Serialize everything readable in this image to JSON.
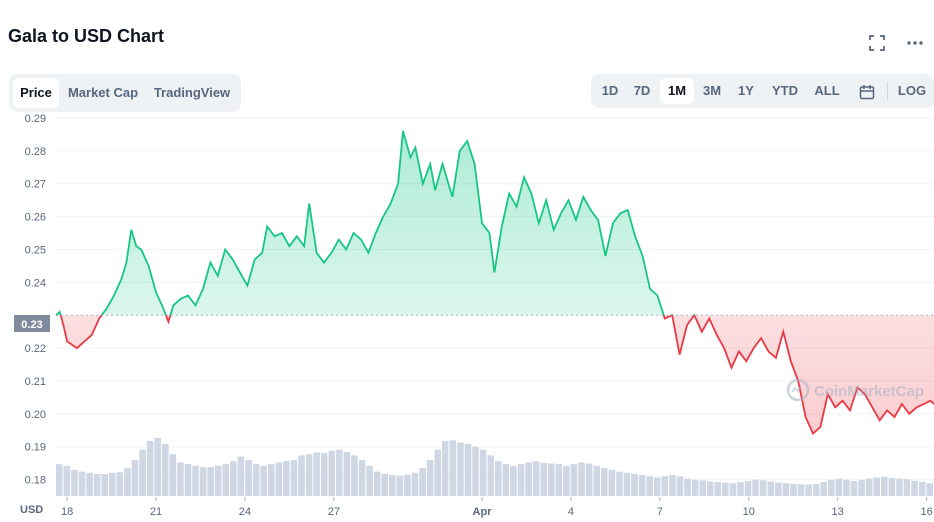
{
  "header": {
    "title": "Gala to USD Chart",
    "fullscreen_icon": "fullscreen-icon",
    "more_icon": "more-options-icon"
  },
  "left_tabs": [
    {
      "label": "Price",
      "active": true
    },
    {
      "label": "Market Cap",
      "active": false
    },
    {
      "label": "TradingView",
      "active": false
    }
  ],
  "range_tabs": [
    {
      "label": "1D",
      "active": false
    },
    {
      "label": "7D",
      "active": false
    },
    {
      "label": "1M",
      "active": true
    },
    {
      "label": "3M",
      "active": false
    },
    {
      "label": "1Y",
      "active": false
    },
    {
      "label": "YTD",
      "active": false
    },
    {
      "label": "ALL",
      "active": false
    }
  ],
  "calendar_icon": "calendar-icon",
  "log_label": "LOG",
  "watermark": "CoinMarketCap",
  "colors": {
    "up": "#16c784",
    "down": "#ea3943",
    "volume": "#cfd6e4",
    "grid": "#eff2f5",
    "axis_text": "#58667e"
  },
  "chart_data": {
    "type": "line",
    "currency_label": "USD",
    "baseline": 0.23,
    "baseline_label": "0.23",
    "ylim": [
      0.175,
      0.29
    ],
    "y_ticks": [
      "0.29",
      "0.28",
      "0.27",
      "0.26",
      "0.25",
      "0.24",
      "0.22",
      "0.21",
      "0.20",
      "0.19",
      "0.18"
    ],
    "x_range": [
      "2022-03-17T15:00",
      "2022-04-16T06:00"
    ],
    "x_ticks": [
      {
        "label": "18",
        "date": "2022-03-18"
      },
      {
        "label": "21",
        "date": "2022-03-21"
      },
      {
        "label": "24",
        "date": "2022-03-24"
      },
      {
        "label": "27",
        "date": "2022-03-27"
      },
      {
        "label": "Apr",
        "date": "2022-04-01",
        "bold": true
      },
      {
        "label": "4",
        "date": "2022-04-04"
      },
      {
        "label": "7",
        "date": "2022-04-07"
      },
      {
        "label": "10",
        "date": "2022-04-10"
      },
      {
        "label": "13",
        "date": "2022-04-13"
      },
      {
        "label": "16",
        "date": "2022-04-16"
      }
    ],
    "series": [
      {
        "price": [
          [
            "2022-03-17T15:00",
            0.23
          ],
          [
            "2022-03-17T18:00",
            0.231
          ],
          [
            "2022-03-17T21:00",
            0.227
          ],
          [
            "2022-03-18T00:00",
            0.222
          ],
          [
            "2022-03-18T04:00",
            0.221
          ],
          [
            "2022-03-18T08:00",
            0.22
          ],
          [
            "2022-03-18T14:00",
            0.222
          ],
          [
            "2022-03-18T20:00",
            0.224
          ],
          [
            "2022-03-19T02:00",
            0.229
          ],
          [
            "2022-03-19T08:00",
            0.232
          ],
          [
            "2022-03-19T14:00",
            0.236
          ],
          [
            "2022-03-19T20:00",
            0.241
          ],
          [
            "2022-03-20T00:00",
            0.246
          ],
          [
            "2022-03-20T04:00",
            0.256
          ],
          [
            "2022-03-20T08:00",
            0.251
          ],
          [
            "2022-03-20T12:00",
            0.25
          ],
          [
            "2022-03-20T18:00",
            0.245
          ],
          [
            "2022-03-21T00:00",
            0.237
          ],
          [
            "2022-03-21T06:00",
            0.232
          ],
          [
            "2022-03-21T10:00",
            0.228
          ],
          [
            "2022-03-21T14:00",
            0.233
          ],
          [
            "2022-03-21T20:00",
            0.235
          ],
          [
            "2022-03-22T02:00",
            0.236
          ],
          [
            "2022-03-22T08:00",
            0.233
          ],
          [
            "2022-03-22T14:00",
            0.238
          ],
          [
            "2022-03-22T20:00",
            0.246
          ],
          [
            "2022-03-23T02:00",
            0.242
          ],
          [
            "2022-03-23T08:00",
            0.25
          ],
          [
            "2022-03-23T14:00",
            0.247
          ],
          [
            "2022-03-23T20:00",
            0.243
          ],
          [
            "2022-03-24T02:00",
            0.239
          ],
          [
            "2022-03-24T08:00",
            0.247
          ],
          [
            "2022-03-24T14:00",
            0.249
          ],
          [
            "2022-03-24T18:00",
            0.257
          ],
          [
            "2022-03-25T00:00",
            0.254
          ],
          [
            "2022-03-25T06:00",
            0.255
          ],
          [
            "2022-03-25T12:00",
            0.251
          ],
          [
            "2022-03-25T18:00",
            0.254
          ],
          [
            "2022-03-26T00:00",
            0.251
          ],
          [
            "2022-03-26T04:00",
            0.264
          ],
          [
            "2022-03-26T10:00",
            0.249
          ],
          [
            "2022-03-26T16:00",
            0.246
          ],
          [
            "2022-03-26T22:00",
            0.249
          ],
          [
            "2022-03-27T04:00",
            0.253
          ],
          [
            "2022-03-27T10:00",
            0.25
          ],
          [
            "2022-03-27T16:00",
            0.255
          ],
          [
            "2022-03-27T22:00",
            0.253
          ],
          [
            "2022-03-28T04:00",
            0.249
          ],
          [
            "2022-03-28T10:00",
            0.255
          ],
          [
            "2022-03-28T16:00",
            0.26
          ],
          [
            "2022-03-28T22:00",
            0.264
          ],
          [
            "2022-03-29T04:00",
            0.27
          ],
          [
            "2022-03-29T08:00",
            0.286
          ],
          [
            "2022-03-29T14:00",
            0.278
          ],
          [
            "2022-03-29T18:00",
            0.281
          ],
          [
            "2022-03-30T00:00",
            0.27
          ],
          [
            "2022-03-30T06:00",
            0.276
          ],
          [
            "2022-03-30T10:00",
            0.268
          ],
          [
            "2022-03-30T16:00",
            0.276
          ],
          [
            "2022-03-31T00:00",
            0.266
          ],
          [
            "2022-03-31T06:00",
            0.28
          ],
          [
            "2022-03-31T12:00",
            0.283
          ],
          [
            "2022-03-31T18:00",
            0.276
          ],
          [
            "2022-04-01T00:00",
            0.258
          ],
          [
            "2022-04-01T06:00",
            0.255
          ],
          [
            "2022-04-01T10:00",
            0.243
          ],
          [
            "2022-04-01T16:00",
            0.257
          ],
          [
            "2022-04-01T22:00",
            0.267
          ],
          [
            "2022-04-02T04:00",
            0.263
          ],
          [
            "2022-04-02T10:00",
            0.272
          ],
          [
            "2022-04-02T16:00",
            0.267
          ],
          [
            "2022-04-02T22:00",
            0.258
          ],
          [
            "2022-04-03T04:00",
            0.265
          ],
          [
            "2022-04-03T10:00",
            0.256
          ],
          [
            "2022-04-03T16:00",
            0.261
          ],
          [
            "2022-04-03T22:00",
            0.265
          ],
          [
            "2022-04-04T04:00",
            0.259
          ],
          [
            "2022-04-04T10:00",
            0.266
          ],
          [
            "2022-04-04T16:00",
            0.262
          ],
          [
            "2022-04-04T22:00",
            0.259
          ],
          [
            "2022-04-05T04:00",
            0.248
          ],
          [
            "2022-04-05T10:00",
            0.258
          ],
          [
            "2022-04-05T16:00",
            0.261
          ],
          [
            "2022-04-05T22:00",
            0.262
          ],
          [
            "2022-04-06T04:00",
            0.254
          ],
          [
            "2022-04-06T10:00",
            0.248
          ],
          [
            "2022-04-06T16:00",
            0.238
          ],
          [
            "2022-04-06T22:00",
            0.236
          ],
          [
            "2022-04-07T04:00",
            0.229
          ],
          [
            "2022-04-07T10:00",
            0.23
          ],
          [
            "2022-04-07T16:00",
            0.218
          ],
          [
            "2022-04-07T22:00",
            0.227
          ],
          [
            "2022-04-08T04:00",
            0.23
          ],
          [
            "2022-04-08T10:00",
            0.225
          ],
          [
            "2022-04-08T16:00",
            0.229
          ],
          [
            "2022-04-08T22:00",
            0.224
          ],
          [
            "2022-04-09T04:00",
            0.22
          ],
          [
            "2022-04-09T10:00",
            0.214
          ],
          [
            "2022-04-09T16:00",
            0.219
          ],
          [
            "2022-04-09T22:00",
            0.216
          ],
          [
            "2022-04-10T04:00",
            0.22
          ],
          [
            "2022-04-10T10:00",
            0.223
          ],
          [
            "2022-04-10T16:00",
            0.219
          ],
          [
            "2022-04-10T22:00",
            0.217
          ],
          [
            "2022-04-11T04:00",
            0.225
          ],
          [
            "2022-04-11T10:00",
            0.216
          ],
          [
            "2022-04-11T16:00",
            0.21
          ],
          [
            "2022-04-11T22:00",
            0.199
          ],
          [
            "2022-04-12T04:00",
            0.194
          ],
          [
            "2022-04-12T10:00",
            0.196
          ],
          [
            "2022-04-12T16:00",
            0.206
          ],
          [
            "2022-04-12T22:00",
            0.202
          ],
          [
            "2022-04-13T04:00",
            0.204
          ],
          [
            "2022-04-13T10:00",
            0.201
          ],
          [
            "2022-04-13T16:00",
            0.208
          ],
          [
            "2022-04-13T22:00",
            0.206
          ],
          [
            "2022-04-14T04:00",
            0.202
          ],
          [
            "2022-04-14T10:00",
            0.198
          ],
          [
            "2022-04-14T16:00",
            0.201
          ],
          [
            "2022-04-14T22:00",
            0.199
          ],
          [
            "2022-04-15T04:00",
            0.203
          ],
          [
            "2022-04-15T10:00",
            0.2
          ],
          [
            "2022-04-15T16:00",
            0.202
          ],
          [
            "2022-04-15T22:00",
            0.203
          ],
          [
            "2022-04-16T03:00",
            0.204
          ],
          [
            "2022-04-16T06:00",
            0.203
          ]
        ],
        "volume_relative": [
          0.55,
          0.52,
          0.45,
          0.42,
          0.4,
          0.38,
          0.38,
          0.4,
          0.41,
          0.48,
          0.62,
          0.8,
          0.95,
          1.0,
          0.9,
          0.72,
          0.58,
          0.55,
          0.52,
          0.5,
          0.5,
          0.52,
          0.55,
          0.6,
          0.68,
          0.62,
          0.55,
          0.52,
          0.55,
          0.58,
          0.6,
          0.62,
          0.7,
          0.72,
          0.75,
          0.74,
          0.78,
          0.8,
          0.76,
          0.7,
          0.62,
          0.52,
          0.42,
          0.38,
          0.36,
          0.35,
          0.37,
          0.4,
          0.48,
          0.62,
          0.8,
          0.95,
          0.96,
          0.92,
          0.9,
          0.85,
          0.8,
          0.7,
          0.6,
          0.55,
          0.52,
          0.55,
          0.58,
          0.6,
          0.57,
          0.56,
          0.55,
          0.52,
          0.55,
          0.58,
          0.56,
          0.52,
          0.48,
          0.45,
          0.42,
          0.4,
          0.38,
          0.36,
          0.34,
          0.32,
          0.34,
          0.36,
          0.34,
          0.3,
          0.28,
          0.27,
          0.25,
          0.24,
          0.23,
          0.22,
          0.24,
          0.26,
          0.28,
          0.27,
          0.25,
          0.23,
          0.22,
          0.21,
          0.2,
          0.2,
          0.21,
          0.24,
          0.28,
          0.3,
          0.28,
          0.26,
          0.28,
          0.3,
          0.32,
          0.33,
          0.31,
          0.3,
          0.29,
          0.26,
          0.24,
          0.22
        ]
      }
    ]
  }
}
